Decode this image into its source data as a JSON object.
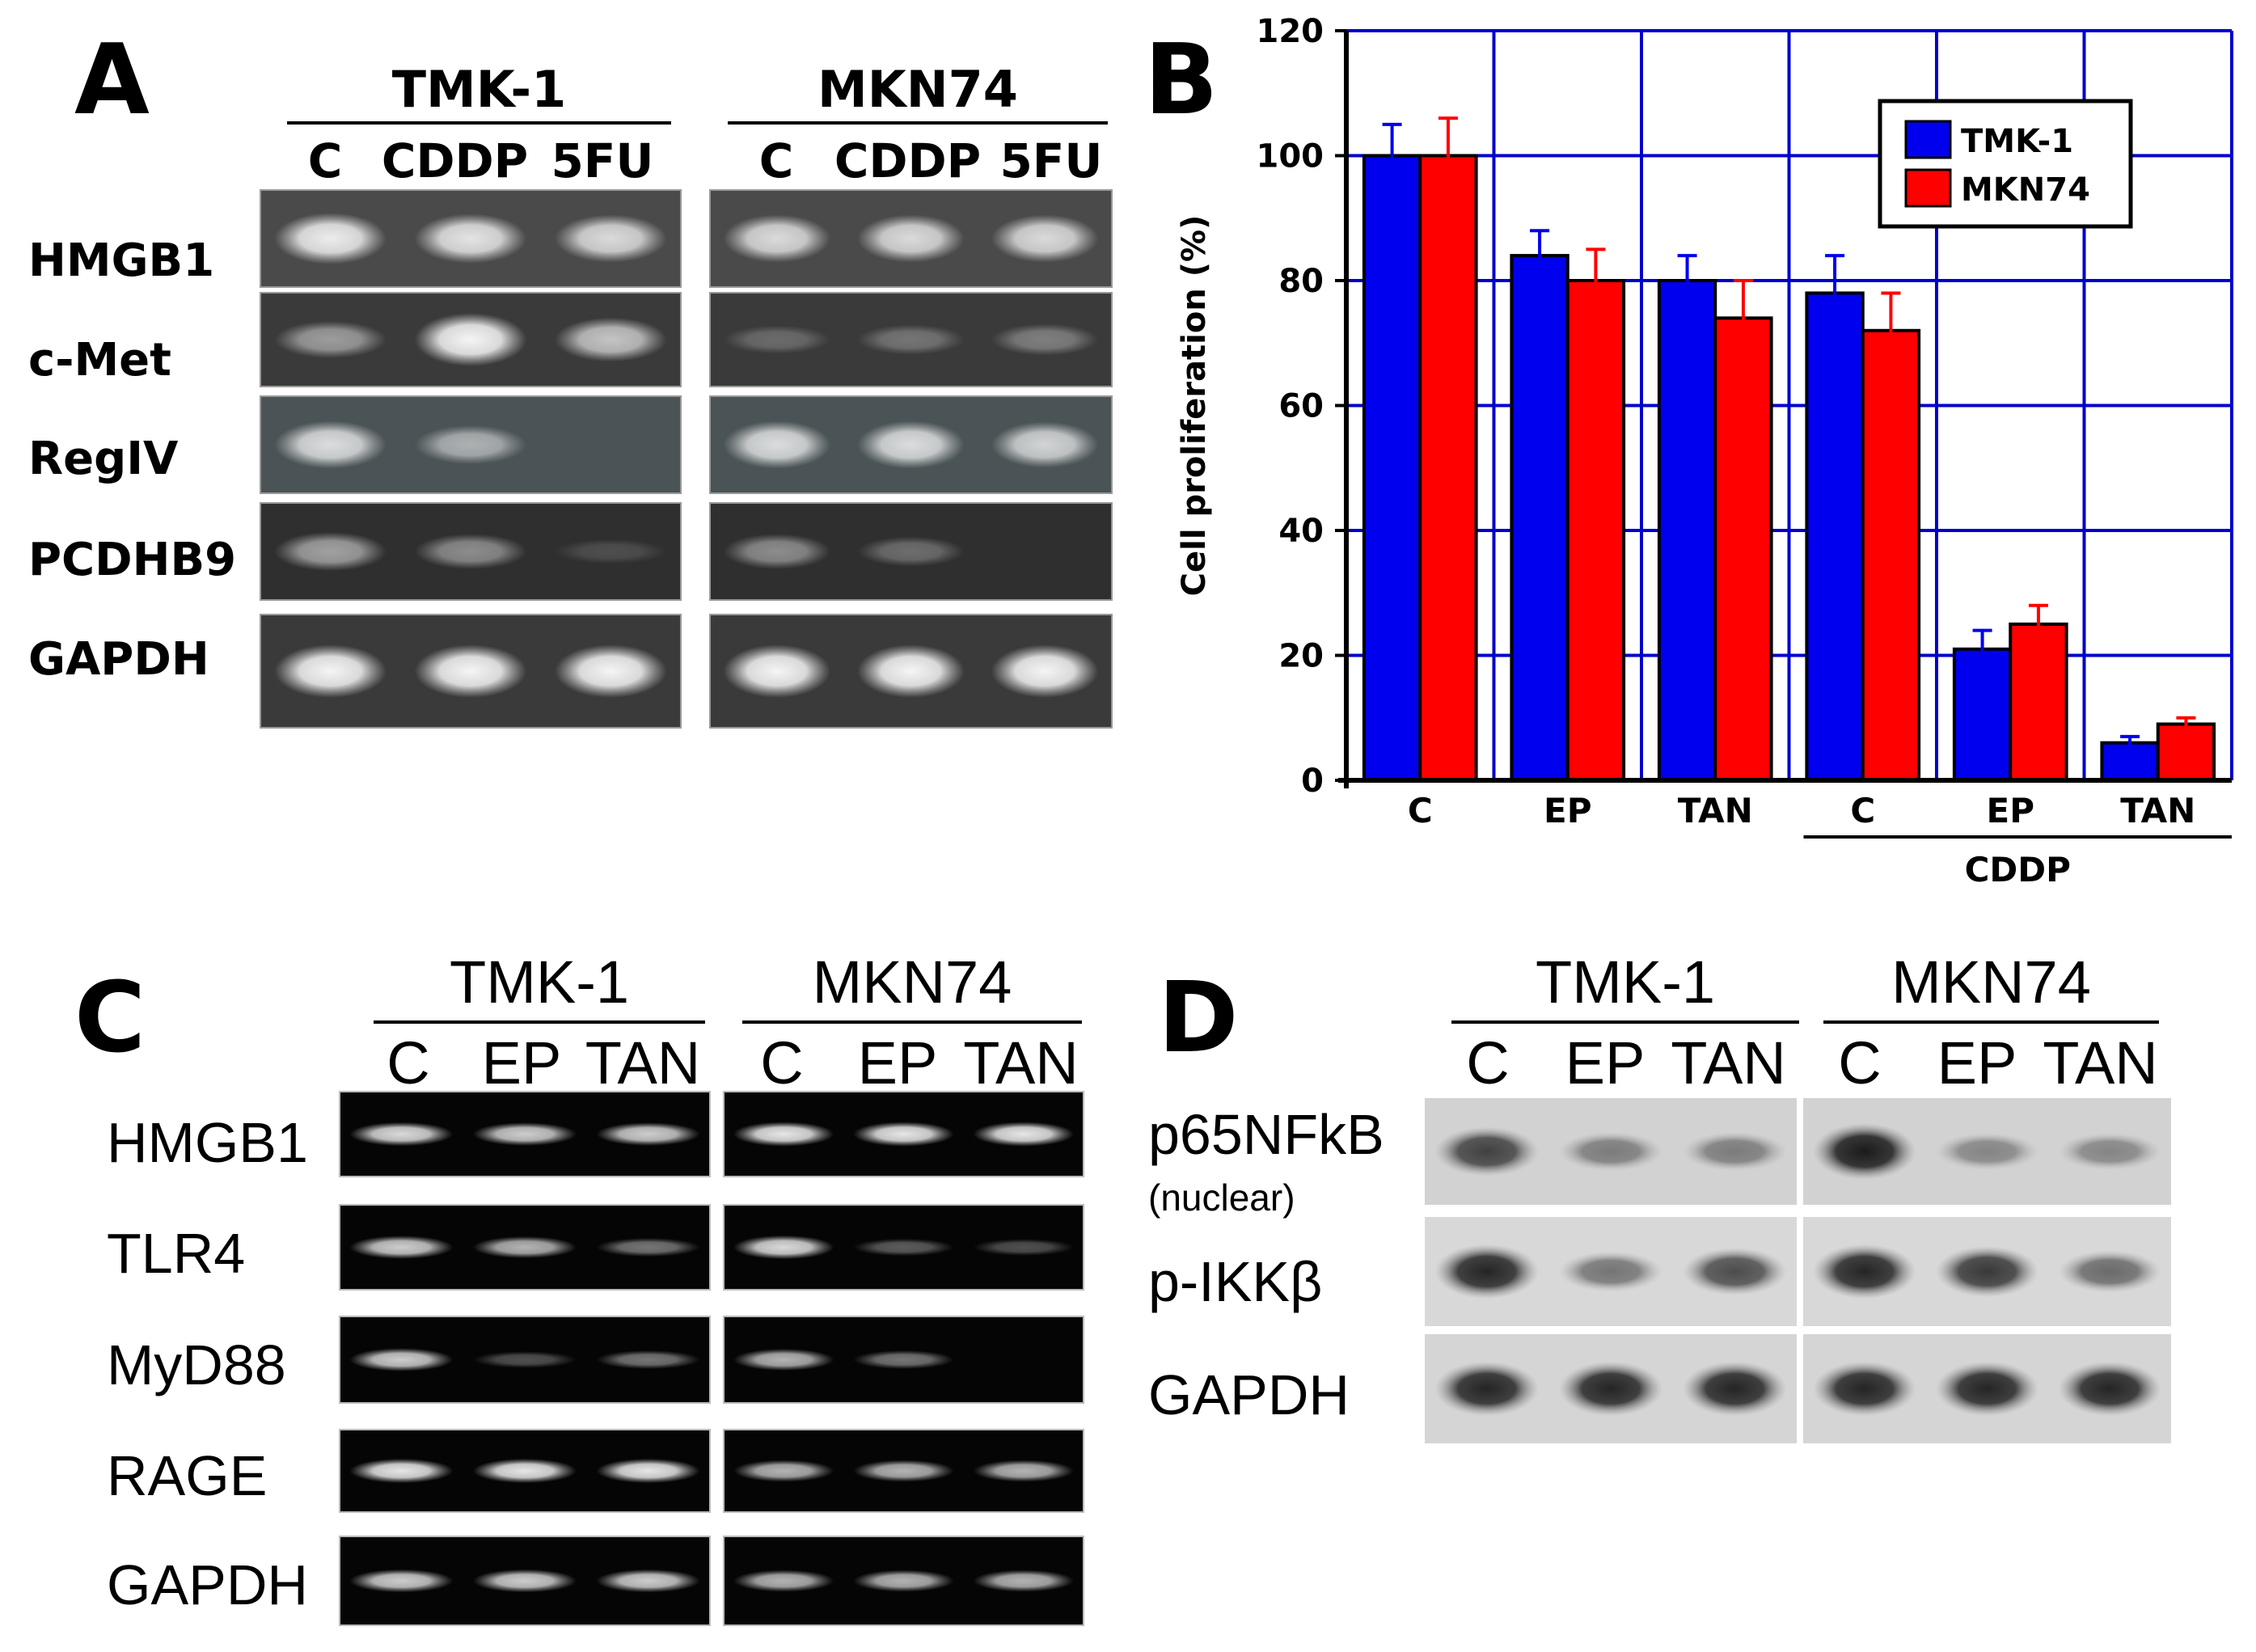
{
  "panel_a": {
    "letter": "A",
    "cell_lines": [
      "TMK-1",
      "MKN74"
    ],
    "lanes": [
      "C",
      "CDDP",
      "5FU"
    ],
    "genes": [
      "HMGB1",
      "c-Met",
      "RegIV",
      "PCDHB9",
      "GAPDH"
    ],
    "band_intensity": {
      "TMK-1": [
        [
          0.9,
          0.85,
          0.8
        ],
        [
          0.5,
          0.95,
          0.7
        ],
        [
          0.8,
          0.55,
          0.0
        ],
        [
          0.55,
          0.45,
          0.15
        ],
        [
          0.95,
          0.95,
          0.95
        ]
      ],
      "MKN74": [
        [
          0.8,
          0.8,
          0.8
        ],
        [
          0.25,
          0.3,
          0.35
        ],
        [
          0.8,
          0.8,
          0.75
        ],
        [
          0.45,
          0.3,
          0.0
        ],
        [
          0.95,
          0.95,
          0.95
        ]
      ]
    }
  },
  "panel_b": {
    "letter": "B",
    "chart_data": {
      "type": "bar",
      "categories": [
        "C",
        "EP",
        "TAN",
        "C",
        "EP",
        "TAN"
      ],
      "group_label": "CDDP",
      "series": [
        {
          "name": "TMK-1",
          "color": "#0000ee",
          "error_color": "#0000ee",
          "values": [
            100,
            84,
            80,
            78,
            21,
            6
          ],
          "errors": [
            0,
            0,
            0,
            0,
            0,
            0
          ]
        },
        {
          "name": "MKN74",
          "color": "#ff0000",
          "error_color": "#ff0000",
          "values": [
            100,
            80,
            74,
            72,
            25,
            9
          ],
          "errors": [
            0,
            0,
            0,
            0,
            0,
            0
          ]
        }
      ],
      "error_values": {
        "TMK-1": [
          5,
          4,
          4,
          6,
          3,
          1
        ],
        "MKN74": [
          6,
          5,
          6,
          6,
          3,
          1
        ]
      },
      "ylabel": "Cell proliferation (%)",
      "ylim": [
        0,
        120
      ],
      "yticks": [
        "0",
        "20",
        "40",
        "60",
        "80",
        "100",
        "120"
      ],
      "grid": true,
      "grid_color": "#0000cc",
      "legend_position": "top-right"
    }
  },
  "panel_c": {
    "letter": "C",
    "cell_lines": [
      "TMK-1",
      "MKN74"
    ],
    "lanes": [
      "C",
      "EP",
      "TAN"
    ],
    "genes": [
      "HMGB1",
      "TLR4",
      "MyD88",
      "RAGE",
      "GAPDH"
    ],
    "band_intensity": {
      "TMK-1": [
        [
          0.85,
          0.8,
          0.8
        ],
        [
          0.8,
          0.7,
          0.45
        ],
        [
          0.8,
          0.3,
          0.45
        ],
        [
          0.9,
          0.9,
          0.9
        ],
        [
          0.8,
          0.8,
          0.8
        ]
      ],
      "MKN74": [
        [
          0.9,
          0.9,
          0.9
        ],
        [
          0.85,
          0.35,
          0.3
        ],
        [
          0.7,
          0.45,
          0.0
        ],
        [
          0.7,
          0.7,
          0.7
        ],
        [
          0.7,
          0.7,
          0.7
        ]
      ]
    }
  },
  "panel_d": {
    "letter": "D",
    "cell_lines": [
      "TMK-1",
      "MKN74"
    ],
    "lanes": [
      "C",
      "EP",
      "TAN"
    ],
    "proteins": [
      {
        "label": "p65NFkB",
        "sublabel": "(nuclear)"
      },
      {
        "label": "p-IKKβ",
        "sublabel": ""
      },
      {
        "label": "GAPDH",
        "sublabel": ""
      }
    ],
    "band_intensity": {
      "TMK-1": [
        [
          0.75,
          0.45,
          0.45
        ],
        [
          0.9,
          0.5,
          0.7
        ],
        [
          0.9,
          0.9,
          0.9
        ]
      ],
      "MKN74": [
        [
          0.95,
          0.4,
          0.4
        ],
        [
          0.9,
          0.8,
          0.55
        ],
        [
          0.9,
          0.9,
          0.9
        ]
      ]
    }
  }
}
